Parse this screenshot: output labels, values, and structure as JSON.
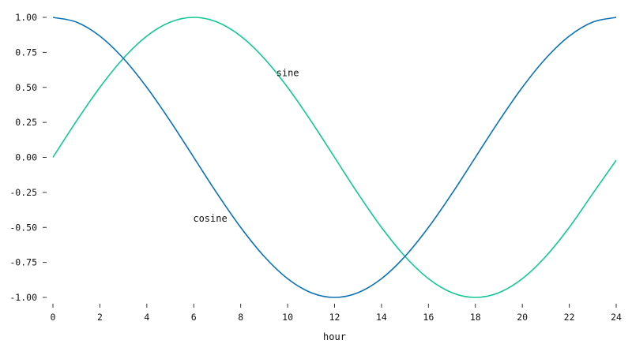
{
  "chart_data": {
    "type": "line",
    "title": "",
    "xlabel": "hour",
    "ylabel": "",
    "xlim": [
      0,
      24
    ],
    "ylim": [
      -1,
      1
    ],
    "grid": false,
    "legend": "none",
    "x_ticks": [
      0,
      2,
      4,
      6,
      8,
      10,
      12,
      14,
      16,
      18,
      20,
      22,
      24
    ],
    "x_tick_labels": [
      "0",
      "2",
      "4",
      "6",
      "8",
      "10",
      "12",
      "14",
      "16",
      "18",
      "20",
      "22",
      "24"
    ],
    "y_ticks": [
      1.0,
      0.75,
      0.5,
      0.25,
      0.0,
      -0.25,
      -0.5,
      -0.75,
      -1.0
    ],
    "y_tick_labels": [
      "1.00",
      "0.75",
      "0.50",
      "0.25",
      "0.00",
      "-0.25",
      "-0.50",
      "-0.75",
      "-1.00"
    ],
    "x": [
      0,
      1,
      2,
      3,
      4,
      5,
      6,
      7,
      8,
      9,
      10,
      11,
      12,
      13,
      14,
      15,
      16,
      17,
      18,
      19,
      20,
      21,
      22,
      23,
      24
    ],
    "series": [
      {
        "name": "sine",
        "color": "#12c795",
        "label_at": [
          10,
          0.58
        ],
        "values": [
          0.0,
          0.259,
          0.5,
          0.707,
          0.866,
          0.966,
          1.0,
          0.966,
          0.866,
          0.707,
          0.5,
          0.259,
          0.0,
          -0.259,
          -0.5,
          -0.707,
          -0.866,
          -0.966,
          -1.0,
          -0.966,
          -0.866,
          -0.707,
          -0.5,
          -0.259,
          -0.02
        ]
      },
      {
        "name": "cosine",
        "color": "#0a72b5",
        "label_at": [
          6.7,
          -0.46
        ],
        "values": [
          1.0,
          0.966,
          0.866,
          0.707,
          0.5,
          0.259,
          0.0,
          -0.259,
          -0.5,
          -0.707,
          -0.866,
          -0.966,
          -1.0,
          -0.966,
          -0.866,
          -0.707,
          -0.5,
          -0.259,
          0.0,
          0.259,
          0.5,
          0.707,
          0.866,
          0.966,
          1.0
        ]
      }
    ]
  }
}
